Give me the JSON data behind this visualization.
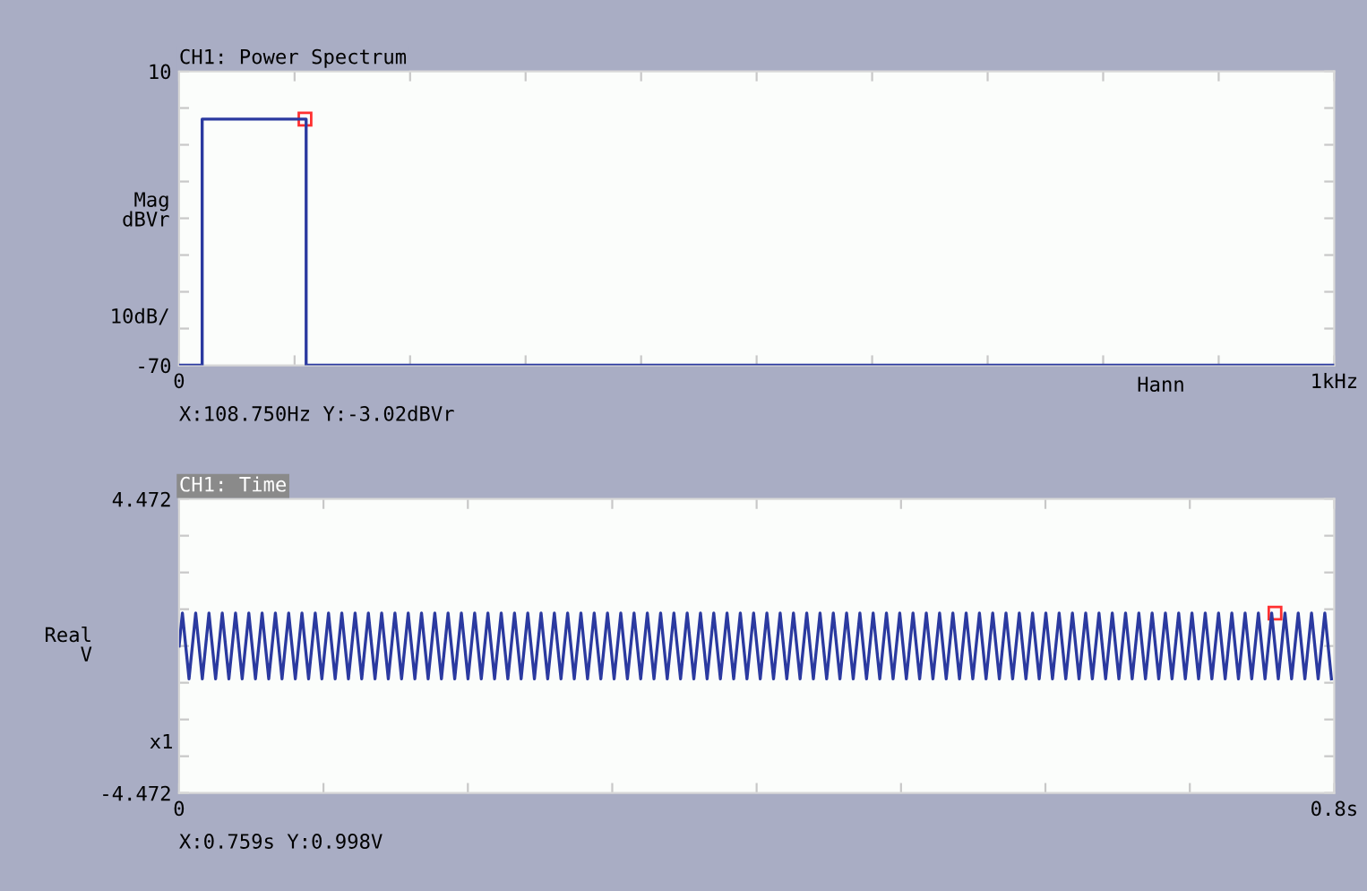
{
  "chart_data": [
    {
      "type": "line",
      "title": "CH1: Power Spectrum",
      "ylabel": "Mag\ndBVr\n\n\n\n\n10dB/",
      "x": [
        0,
        0.02,
        0.02,
        0.11,
        0.11,
        1
      ],
      "series": [
        {
          "color": "#2b3aa0",
          "values": [
            -70,
            -70,
            -3,
            -3,
            -70,
            -70
          ]
        },
        {
          "type": "scatter",
          "marker": "square",
          "color": "#ff3030",
          "x": [
            0.109
          ],
          "values": [
            -3
          ]
        }
      ],
      "xlim": [
        0,
        1
      ],
      "ylim": [
        -70,
        10
      ],
      "xticks": [
        0,
        {
          "value": 0.1,
          "label": null
        },
        {
          "value": 0.2,
          "label": null
        },
        {
          "value": 0.3,
          "label": null
        },
        {
          "value": 0.4,
          "label": null
        },
        {
          "value": 0.5,
          "label": null
        },
        {
          "value": 0.6,
          "label": null
        },
        {
          "value": 0.7,
          "label": null
        },
        {
          "value": 0.8,
          "label": null
        },
        {
          "value": 0.9,
          "label": null
        },
        {
          "value": 1,
          "label": "1kHz"
        }
      ],
      "yticks": [
        -70,
        {
          "value": -60,
          "label": null
        },
        {
          "value": -50,
          "label": null
        },
        {
          "value": -40,
          "label": null
        },
        {
          "value": -30,
          "label": null
        },
        {
          "value": -20,
          "label": null
        },
        {
          "value": -10,
          "label": null
        },
        {
          "value": 0,
          "label": null
        },
        10
      ],
      "grid": false,
      "legend": false,
      "marker": "none",
      "line_style": "solid",
      "annotations": [
        "X:108.750Hz Y:-3.02dBVr",
        "Hann"
      ]
    },
    {
      "type": "line",
      "title": "CH1: Time",
      "ylabel": "Real\nV",
      "x": [
        0,
        0.0023,
        0.0069,
        0.0115,
        0.0161,
        0.0207,
        0.0253,
        0.0299,
        0.0345,
        0.0391,
        0.0437,
        0.0483,
        0.0529,
        0.0575,
        0.0621,
        0.0667,
        0.0713,
        0.0759,
        0.0805,
        0.0851,
        0.0897,
        0.0943,
        0.0989,
        0.1035,
        0.1081,
        0.1127,
        0.1173,
        0.1219,
        0.1265,
        0.1311,
        0.1357,
        0.1403,
        0.1449,
        0.1495,
        0.1541,
        0.1587,
        0.1633,
        0.1679,
        0.1725,
        0.1771,
        0.1817,
        0.1863,
        0.1909,
        0.1955,
        0.2001,
        0.2047,
        0.2093,
        0.2139,
        0.2185,
        0.2231,
        0.2277,
        0.2323,
        0.2369,
        0.2415,
        0.2461,
        0.2507,
        0.2553,
        0.2599,
        0.2645,
        0.2691,
        0.2737,
        0.2783,
        0.2829,
        0.2875,
        0.2921,
        0.2967,
        0.3013,
        0.3059,
        0.3105,
        0.3151,
        0.3197,
        0.3243,
        0.3289,
        0.3335,
        0.3381,
        0.3427,
        0.3473,
        0.3519,
        0.3565,
        0.3611,
        0.3657,
        0.3703,
        0.3749,
        0.3795,
        0.3841,
        0.3887,
        0.3933,
        0.3979,
        0.4025,
        0.4071,
        0.4117,
        0.4163,
        0.4209,
        0.4255,
        0.4301,
        0.4347,
        0.4393,
        0.4439,
        0.4485,
        0.4531,
        0.4577,
        0.4623,
        0.4669,
        0.4715,
        0.4761,
        0.4807,
        0.4853,
        0.4899,
        0.4945,
        0.4991,
        0.5037,
        0.5083,
        0.5129,
        0.5175,
        0.5221,
        0.5267,
        0.5313,
        0.5359,
        0.5405,
        0.5451,
        0.5497,
        0.5543,
        0.5589,
        0.5635,
        0.5681,
        0.5727,
        0.5773,
        0.5819,
        0.5865,
        0.5911,
        0.5957,
        0.6003,
        0.6049,
        0.6095,
        0.6141,
        0.6187,
        0.6233,
        0.6279,
        0.6325,
        0.6371,
        0.6417,
        0.6463,
        0.6509,
        0.6555,
        0.6601,
        0.6647,
        0.6693,
        0.6739,
        0.6785,
        0.6831,
        0.6877,
        0.6923,
        0.6969,
        0.7015,
        0.7061,
        0.7107,
        0.7153,
        0.7199,
        0.7245,
        0.7291,
        0.7337,
        0.7383,
        0.7429,
        0.7475,
        0.7521,
        0.7567,
        0.7613,
        0.7659,
        0.7705,
        0.7751,
        0.7797,
        0.7843,
        0.7889,
        0.7935,
        0.7981
      ],
      "series": [
        {
          "color": "#2b3aa0",
          "values": [
            0,
            1,
            -1,
            1,
            -1,
            1,
            -1,
            1,
            -1,
            1,
            -1,
            1,
            -1,
            1,
            -1,
            1,
            -1,
            1,
            -1,
            1,
            -1,
            1,
            -1,
            1,
            -1,
            1,
            -1,
            1,
            -1,
            1,
            -1,
            1,
            -1,
            1,
            -1,
            1,
            -1,
            1,
            -1,
            1,
            -1,
            1,
            -1,
            1,
            -1,
            1,
            -1,
            1,
            -1,
            1,
            -1,
            1,
            -1,
            1,
            -1,
            1,
            -1,
            1,
            -1,
            1,
            -1,
            1,
            -1,
            1,
            -1,
            1,
            -1,
            1,
            -1,
            1,
            -1,
            1,
            -1,
            1,
            -1,
            1,
            -1,
            1,
            -1,
            1,
            -1,
            1,
            -1,
            1,
            -1,
            1,
            -1,
            1,
            -1,
            1,
            -1,
            1,
            -1,
            1,
            -1,
            1,
            -1,
            1,
            -1,
            1,
            -1,
            1,
            -1,
            1,
            -1,
            1,
            -1,
            1,
            -1,
            1,
            -1,
            1,
            -1,
            1,
            -1,
            1,
            -1,
            1,
            -1,
            1,
            -1,
            1,
            -1,
            1,
            -1,
            1,
            -1,
            1,
            -1,
            1,
            -1,
            1,
            -1,
            1,
            -1,
            1,
            -1,
            1,
            -1,
            1,
            -1,
            1,
            -1,
            1,
            -1,
            1,
            -1,
            1,
            -1,
            1,
            -1,
            1,
            -1,
            1,
            -1,
            1,
            -1,
            1,
            -1,
            1,
            -1,
            1,
            -1,
            1,
            -1,
            1,
            -1,
            1,
            -1,
            1,
            -1,
            1,
            -1,
            1,
            -1
          ]
        },
        {
          "type": "scatter",
          "marker": "square",
          "color": "#ff3030",
          "x": [
            0.759
          ],
          "values": [
            1
          ]
        }
      ],
      "xlim": [
        0,
        0.8
      ],
      "ylim": [
        -4.472,
        4.472
      ],
      "xticks": [
        0,
        {
          "value": 0.1,
          "label": null
        },
        {
          "value": 0.2,
          "label": null
        },
        {
          "value": 0.3,
          "label": null
        },
        {
          "value": 0.4,
          "label": null
        },
        {
          "value": 0.5,
          "label": null
        },
        {
          "value": 0.6,
          "label": null
        },
        {
          "value": 0.7,
          "label": null
        },
        {
          "value": 0.8,
          "label": "0.8s"
        }
      ],
      "yticks": [
        -4.472,
        {
          "value": -3.354,
          "label": null
        },
        {
          "value": -2.236,
          "label": null
        },
        {
          "value": -1.118,
          "label": null
        },
        {
          "value": 0,
          "label": null
        },
        {
          "value": 1.118,
          "label": null
        },
        {
          "value": 2.236,
          "label": null
        },
        {
          "value": 3.354,
          "label": null
        },
        4.472
      ],
      "grid": false,
      "legend": false,
      "marker": "none",
      "line_style": "solid",
      "annotations": [
        "X:0.759s Y:0.998V",
        "x1"
      ]
    }
  ]
}
